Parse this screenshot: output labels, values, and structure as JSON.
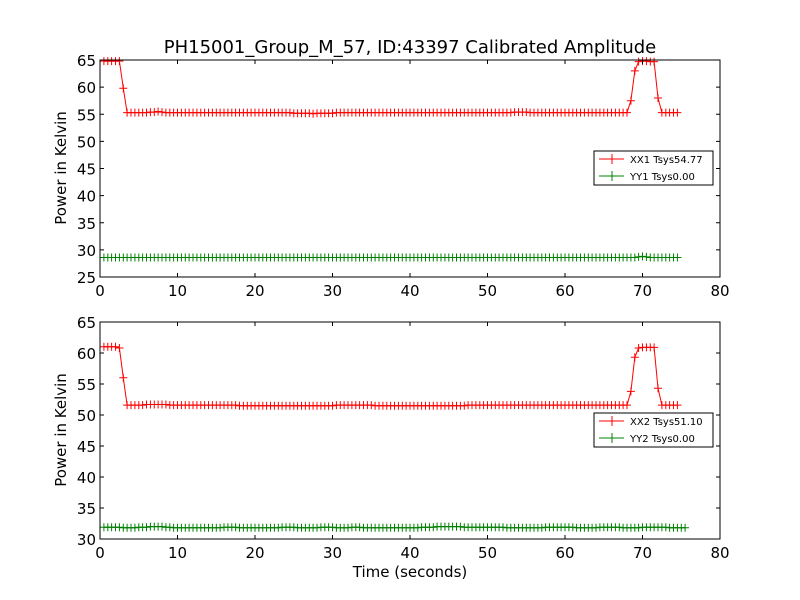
{
  "chart_data": {
    "title": "PH15001_Group_M_57, ID:43397 Calibrated Amplitude",
    "type": "line",
    "panels": [
      {
        "xlabel": "",
        "ylabel": "Power in Kelvin",
        "xlim": [
          0,
          80
        ],
        "ylim": [
          25,
          65
        ],
        "xticks": [
          "0",
          "10",
          "20",
          "30",
          "40",
          "50",
          "60",
          "70",
          "80"
        ],
        "yticks": [
          "25",
          "30",
          "35",
          "40",
          "45",
          "50",
          "55",
          "60",
          "65"
        ],
        "legend_placement": "center-right",
        "series": [
          {
            "name": "XX1 Tsys54.77",
            "color": "#ff0000",
            "marker": "+",
            "x_start": 0.5,
            "x_step": 0.5,
            "y": [
              64.8,
              64.8,
              64.8,
              64.8,
              64.8,
              59.8,
              55.3,
              55.3,
              55.3,
              55.3,
              55.3,
              55.3,
              55.4,
              55.4,
              55.5,
              55.4,
              55.3,
              55.3,
              55.3,
              55.3,
              55.3,
              55.3,
              55.3,
              55.3,
              55.3,
              55.3,
              55.3,
              55.3,
              55.3,
              55.3,
              55.3,
              55.3,
              55.3,
              55.3,
              55.3,
              55.3,
              55.3,
              55.3,
              55.3,
              55.3,
              55.3,
              55.3,
              55.3,
              55.3,
              55.3,
              55.3,
              55.3,
              55.3,
              55.3,
              55.2,
              55.2,
              55.2,
              55.2,
              55.2,
              55.1,
              55.2,
              55.2,
              55.2,
              55.2,
              55.2,
              55.3,
              55.3,
              55.3,
              55.3,
              55.3,
              55.3,
              55.3,
              55.3,
              55.3,
              55.3,
              55.3,
              55.3,
              55.3,
              55.3,
              55.3,
              55.3,
              55.3,
              55.3,
              55.3,
              55.3,
              55.3,
              55.3,
              55.3,
              55.3,
              55.3,
              55.3,
              55.3,
              55.3,
              55.3,
              55.3,
              55.3,
              55.3,
              55.3,
              55.3,
              55.3,
              55.3,
              55.3,
              55.3,
              55.3,
              55.3,
              55.3,
              55.3,
              55.3,
              55.3,
              55.3,
              55.3,
              55.4,
              55.4,
              55.4,
              55.4,
              55.3,
              55.3,
              55.3,
              55.3,
              55.3,
              55.3,
              55.3,
              55.3,
              55.3,
              55.3,
              55.3,
              55.3,
              55.3,
              55.3,
              55.3,
              55.3,
              55.3,
              55.3,
              55.3,
              55.3,
              55.3,
              55.3,
              55.3,
              55.3,
              55.3,
              55.3,
              57.5,
              63.0,
              64.7,
              64.8,
              64.8,
              64.7,
              64.7,
              58.0,
              55.3,
              55.3,
              55.3,
              55.3,
              55.3
            ]
          },
          {
            "name": "YY1 Tsys0.00",
            "color": "#008000",
            "marker": "+",
            "x_start": 0.5,
            "x_step": 0.5,
            "y": [
              28.6,
              28.6,
              28.6,
              28.6,
              28.6,
              28.6,
              28.6,
              28.6,
              28.6,
              28.6,
              28.6,
              28.6,
              28.6,
              28.6,
              28.6,
              28.6,
              28.6,
              28.6,
              28.6,
              28.6,
              28.6,
              28.6,
              28.6,
              28.6,
              28.6,
              28.6,
              28.6,
              28.6,
              28.6,
              28.6,
              28.6,
              28.6,
              28.6,
              28.6,
              28.6,
              28.6,
              28.6,
              28.6,
              28.6,
              28.6,
              28.6,
              28.6,
              28.6,
              28.6,
              28.6,
              28.6,
              28.6,
              28.6,
              28.6,
              28.6,
              28.6,
              28.6,
              28.6,
              28.6,
              28.6,
              28.6,
              28.6,
              28.6,
              28.6,
              28.6,
              28.6,
              28.6,
              28.6,
              28.6,
              28.6,
              28.6,
              28.6,
              28.6,
              28.6,
              28.6,
              28.6,
              28.6,
              28.6,
              28.6,
              28.6,
              28.6,
              28.6,
              28.6,
              28.6,
              28.6,
              28.6,
              28.6,
              28.6,
              28.6,
              28.6,
              28.6,
              28.6,
              28.6,
              28.6,
              28.6,
              28.6,
              28.6,
              28.6,
              28.6,
              28.6,
              28.6,
              28.6,
              28.6,
              28.6,
              28.6,
              28.6,
              28.6,
              28.6,
              28.6,
              28.6,
              28.6,
              28.6,
              28.6,
              28.6,
              28.6,
              28.6,
              28.6,
              28.6,
              28.6,
              28.6,
              28.6,
              28.6,
              28.6,
              28.6,
              28.6,
              28.6,
              28.6,
              28.6,
              28.6,
              28.6,
              28.6,
              28.6,
              28.6,
              28.6,
              28.6,
              28.6,
              28.6,
              28.6,
              28.6,
              28.6,
              28.6,
              28.6,
              28.6,
              28.7,
              28.8,
              28.7,
              28.6,
              28.6,
              28.6,
              28.6,
              28.6,
              28.6,
              28.6,
              28.6
            ]
          }
        ]
      },
      {
        "xlabel": "Time (seconds)",
        "ylabel": "Power in Kelvin",
        "xlim": [
          0,
          80
        ],
        "ylim": [
          30,
          65
        ],
        "xticks": [
          "0",
          "10",
          "20",
          "30",
          "40",
          "50",
          "60",
          "70",
          "80"
        ],
        "yticks": [
          "30",
          "35",
          "40",
          "45",
          "50",
          "55",
          "60",
          "65"
        ],
        "legend_placement": "center-right",
        "series": [
          {
            "name": "XX2 Tsys51.10",
            "color": "#ff0000",
            "marker": "+",
            "x_start": 0.5,
            "x_step": 0.5,
            "y": [
              61.0,
              61.0,
              61.0,
              61.0,
              60.8,
              56.0,
              51.6,
              51.6,
              51.6,
              51.6,
              51.6,
              51.7,
              51.7,
              51.7,
              51.7,
              51.7,
              51.7,
              51.6,
              51.6,
              51.6,
              51.6,
              51.6,
              51.6,
              51.6,
              51.6,
              51.6,
              51.6,
              51.6,
              51.6,
              51.6,
              51.6,
              51.6,
              51.6,
              51.6,
              51.6,
              51.5,
              51.5,
              51.5,
              51.5,
              51.5,
              51.5,
              51.5,
              51.5,
              51.5,
              51.5,
              51.5,
              51.5,
              51.5,
              51.5,
              51.5,
              51.5,
              51.5,
              51.5,
              51.5,
              51.5,
              51.5,
              51.5,
              51.5,
              51.5,
              51.5,
              51.6,
              51.6,
              51.6,
              51.6,
              51.6,
              51.6,
              51.6,
              51.6,
              51.6,
              51.6,
              51.5,
              51.5,
              51.5,
              51.5,
              51.5,
              51.5,
              51.5,
              51.5,
              51.5,
              51.5,
              51.5,
              51.5,
              51.5,
              51.5,
              51.5,
              51.5,
              51.5,
              51.5,
              51.5,
              51.5,
              51.5,
              51.5,
              51.5,
              51.5,
              51.6,
              51.6,
              51.6,
              51.6,
              51.6,
              51.6,
              51.6,
              51.6,
              51.6,
              51.6,
              51.6,
              51.6,
              51.6,
              51.6,
              51.6,
              51.6,
              51.6,
              51.6,
              51.6,
              51.6,
              51.6,
              51.6,
              51.6,
              51.6,
              51.6,
              51.6,
              51.6,
              51.6,
              51.6,
              51.6,
              51.6,
              51.6,
              51.6,
              51.6,
              51.6,
              51.6,
              51.6,
              51.6,
              51.6,
              51.6,
              51.6,
              51.6,
              53.8,
              59.3,
              60.8,
              60.9,
              60.9,
              60.9,
              60.9,
              54.3,
              51.6,
              51.6,
              51.6,
              51.6,
              51.6
            ]
          },
          {
            "name": "YY2 Tsys0.00",
            "color": "#008000",
            "marker": "+",
            "x_start": 0.5,
            "x_step": 0.5,
            "y": [
              31.9,
              31.9,
              31.9,
              31.9,
              31.9,
              31.8,
              31.8,
              31.8,
              31.8,
              31.9,
              31.9,
              31.9,
              32.0,
              32.0,
              32.0,
              32.0,
              31.9,
              31.9,
              31.8,
              31.8,
              31.8,
              31.8,
              31.8,
              31.8,
              31.8,
              31.8,
              31.8,
              31.8,
              31.8,
              31.8,
              31.8,
              31.9,
              31.9,
              31.9,
              31.9,
              31.8,
              31.8,
              31.8,
              31.8,
              31.8,
              31.8,
              31.8,
              31.8,
              31.8,
              31.8,
              31.8,
              31.9,
              31.9,
              31.9,
              31.9,
              31.8,
              31.8,
              31.8,
              31.8,
              31.8,
              31.8,
              31.9,
              31.9,
              31.9,
              31.9,
              31.8,
              31.8,
              31.8,
              31.8,
              31.9,
              31.9,
              31.9,
              31.8,
              31.8,
              31.8,
              31.8,
              31.8,
              31.8,
              31.8,
              31.8,
              31.8,
              31.8,
              31.8,
              31.8,
              31.8,
              31.8,
              31.8,
              31.9,
              31.9,
              31.9,
              31.9,
              32.0,
              32.0,
              32.0,
              32.0,
              32.0,
              32.0,
              32.0,
              31.9,
              31.9,
              31.9,
              31.9,
              31.9,
              31.9,
              31.9,
              31.9,
              31.9,
              31.9,
              31.9,
              31.8,
              31.8,
              31.8,
              31.8,
              31.8,
              31.8,
              31.8,
              31.8,
              31.8,
              31.8,
              31.9,
              31.9,
              31.9,
              31.9,
              31.9,
              31.9,
              31.9,
              31.9,
              31.8,
              31.8,
              31.8,
              31.8,
              31.8,
              31.8,
              31.9,
              31.9,
              31.9,
              31.9,
              31.9,
              31.9,
              31.8,
              31.8,
              31.8,
              31.8,
              31.8,
              31.9,
              31.9,
              31.9,
              31.9,
              31.9,
              31.9,
              31.9,
              31.8,
              31.8,
              31.8,
              31.8,
              31.8
            ]
          }
        ]
      }
    ]
  }
}
